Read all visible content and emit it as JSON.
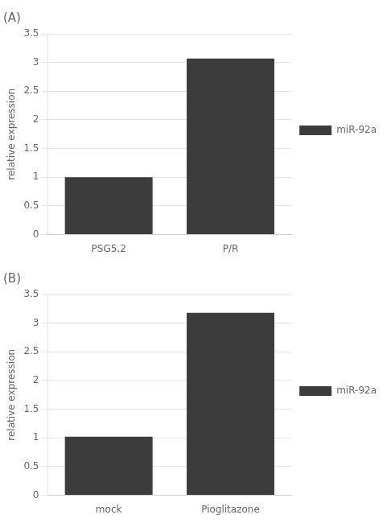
{
  "chart_data": [
    {
      "type": "bar",
      "title": "(A)",
      "categories": [
        "PSG5.2",
        "P/R"
      ],
      "series": [
        {
          "name": "miR-92a",
          "color": "#3c3c3c",
          "values": [
            1.0,
            3.07
          ]
        }
      ],
      "ylabel": "relative expression",
      "ylim": [
        0,
        3.5
      ],
      "yticks": [
        0,
        0.5,
        1,
        1.5,
        2,
        2.5,
        3,
        3.5
      ],
      "grid": true,
      "legend": "right"
    },
    {
      "type": "bar",
      "title": "(B)",
      "categories": [
        "mock",
        "Pioglitazone"
      ],
      "series": [
        {
          "name": "miR-92a",
          "color": "#3c3c3c",
          "values": [
            1.02,
            3.18
          ]
        }
      ],
      "ylabel": "relative expression",
      "ylim": [
        0,
        3.5
      ],
      "yticks": [
        0,
        0.5,
        1,
        1.5,
        2,
        2.5,
        3,
        3.5
      ],
      "grid": true,
      "legend": "right"
    }
  ]
}
